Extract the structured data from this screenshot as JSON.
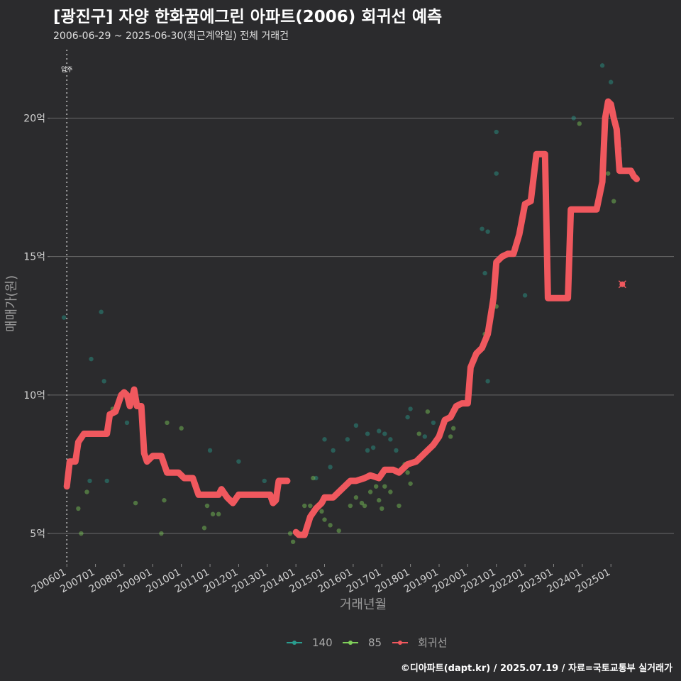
{
  "title": "[광진구] 자양 한화꿈에그린 아파트(2006) 회귀선 예측",
  "subtitle": "2006-06-29 ~ 2025-06-30(최근계약일) 전체 거래건",
  "caption": "©디아파트(dapt.kr) / 2025.07.19 / 자료=국토교통부 실거래가",
  "chart_data": {
    "type": "line",
    "xlabel": "거래년월",
    "ylabel": "매매가(원)",
    "x_unit": "year",
    "xlim": [
      2006.0,
      2025.8
    ],
    "ylim": [
      3.9,
      22.6
    ],
    "x_tick_labels": [
      "200601",
      "200701",
      "200801",
      "200901",
      "201001",
      "201101",
      "201201",
      "201301",
      "201401",
      "201501",
      "201601",
      "201701",
      "201801",
      "201901",
      "202001",
      "202101",
      "202201",
      "202301",
      "202401",
      "202501"
    ],
    "x_tick_values": [
      2006,
      2007,
      2008,
      2009,
      2010,
      2011,
      2012,
      2013,
      2014,
      2015,
      2016,
      2017,
      2018,
      2019,
      2020,
      2021,
      2022,
      2023,
      2024,
      2025
    ],
    "y_tick_labels": [
      "5억",
      "10억",
      "15억",
      "20억"
    ],
    "y_tick_values": [
      5,
      10,
      15,
      20
    ],
    "grid": true,
    "legend_placement": "bottom",
    "annotation": {
      "label": "입주",
      "x": 2006.0
    },
    "highlight_point": {
      "x": 2025.4,
      "y": 14.0
    },
    "series": [
      {
        "name": "140",
        "color": "#2a9d8f",
        "points": [
          [
            2006.8,
            6.9
          ],
          [
            2007.4,
            6.9
          ],
          [
            2007.2,
            13.0
          ],
          [
            2007.3,
            10.5
          ],
          [
            2006.85,
            11.3
          ],
          [
            2008.1,
            9.0
          ],
          [
            2011.0,
            8.0
          ],
          [
            2012.9,
            6.9
          ],
          [
            2012.0,
            7.6
          ],
          [
            2014.7,
            7.0
          ],
          [
            2015.2,
            7.4
          ],
          [
            2015.3,
            8.0
          ],
          [
            2015.0,
            8.4
          ],
          [
            2015.8,
            8.4
          ],
          [
            2016.1,
            8.9
          ],
          [
            2016.5,
            8.6
          ],
          [
            2016.5,
            8.0
          ],
          [
            2016.7,
            8.1
          ],
          [
            2016.9,
            8.7
          ],
          [
            2017.1,
            8.6
          ],
          [
            2017.3,
            8.4
          ],
          [
            2017.5,
            8.0
          ],
          [
            2017.9,
            9.2
          ],
          [
            2018.0,
            9.5
          ],
          [
            2018.5,
            8.5
          ],
          [
            2018.8,
            9.0
          ],
          [
            2020.5,
            16.0
          ],
          [
            2020.7,
            15.9
          ],
          [
            2020.6,
            14.4
          ],
          [
            2020.7,
            10.5
          ],
          [
            2021.0,
            18.0
          ],
          [
            2021.0,
            19.5
          ],
          [
            2022.0,
            13.6
          ],
          [
            2023.7,
            20.0
          ],
          [
            2024.7,
            21.9
          ],
          [
            2025.0,
            21.3
          ],
          [
            2025.3,
            18.9
          ],
          [
            2005.9,
            12.8
          ]
        ]
      },
      {
        "name": "85",
        "color": "#7fcf5a",
        "points": [
          [
            2006.4,
            5.9
          ],
          [
            2006.5,
            5.0
          ],
          [
            2006.7,
            6.5
          ],
          [
            2007.5,
            9.1
          ],
          [
            2007.6,
            9.5
          ],
          [
            2008.4,
            6.1
          ],
          [
            2009.3,
            5.0
          ],
          [
            2009.4,
            6.2
          ],
          [
            2009.5,
            9.0
          ],
          [
            2010.0,
            8.8
          ],
          [
            2010.8,
            5.2
          ],
          [
            2010.9,
            6.0
          ],
          [
            2011.1,
            5.7
          ],
          [
            2011.3,
            5.7
          ],
          [
            2013.8,
            5.0
          ],
          [
            2013.9,
            4.7
          ],
          [
            2014.3,
            6.0
          ],
          [
            2014.5,
            6.0
          ],
          [
            2014.6,
            7.0
          ],
          [
            2014.9,
            5.8
          ],
          [
            2015.0,
            5.5
          ],
          [
            2015.2,
            5.3
          ],
          [
            2015.5,
            5.1
          ],
          [
            2015.9,
            6.0
          ],
          [
            2016.1,
            6.3
          ],
          [
            2016.3,
            6.1
          ],
          [
            2016.4,
            6.0
          ],
          [
            2016.6,
            6.5
          ],
          [
            2016.8,
            6.7
          ],
          [
            2016.9,
            6.2
          ],
          [
            2017.0,
            5.9
          ],
          [
            2017.1,
            6.7
          ],
          [
            2017.3,
            6.5
          ],
          [
            2017.6,
            6.0
          ],
          [
            2017.8,
            7.5
          ],
          [
            2017.9,
            7.2
          ],
          [
            2018.0,
            6.8
          ],
          [
            2018.3,
            8.6
          ],
          [
            2018.6,
            9.4
          ],
          [
            2019.4,
            8.5
          ],
          [
            2019.5,
            8.8
          ],
          [
            2019.6,
            9.5
          ],
          [
            2020.6,
            12.2
          ],
          [
            2021.0,
            13.2
          ],
          [
            2023.5,
            13.5
          ],
          [
            2023.9,
            19.8
          ],
          [
            2024.9,
            18.0
          ],
          [
            2025.1,
            17.0
          ]
        ]
      },
      {
        "name": "회귀선",
        "color": "#f0585e",
        "segments": [
          [
            [
              2006.0,
              6.7
            ],
            [
              2006.1,
              7.6
            ],
            [
              2006.3,
              7.6
            ],
            [
              2006.4,
              8.3
            ],
            [
              2006.6,
              8.6
            ],
            [
              2007.0,
              8.6
            ],
            [
              2007.4,
              8.6
            ],
            [
              2007.5,
              9.3
            ],
            [
              2007.7,
              9.4
            ],
            [
              2007.9,
              10.0
            ],
            [
              2008.0,
              10.1
            ],
            [
              2008.1,
              10.0
            ],
            [
              2008.2,
              9.6
            ],
            [
              2008.35,
              10.2
            ],
            [
              2008.45,
              9.6
            ],
            [
              2008.6,
              9.6
            ],
            [
              2008.7,
              7.9
            ],
            [
              2008.8,
              7.6
            ],
            [
              2009.0,
              7.8
            ],
            [
              2009.3,
              7.8
            ],
            [
              2009.5,
              7.2
            ],
            [
              2009.9,
              7.2
            ],
            [
              2010.1,
              7.0
            ],
            [
              2010.4,
              7.0
            ],
            [
              2010.6,
              6.4
            ],
            [
              2011.3,
              6.4
            ],
            [
              2011.4,
              6.6
            ],
            [
              2011.6,
              6.3
            ],
            [
              2011.8,
              6.1
            ],
            [
              2012.0,
              6.4
            ],
            [
              2012.4,
              6.4
            ],
            [
              2013.1,
              6.4
            ],
            [
              2013.2,
              6.1
            ],
            [
              2013.3,
              6.2
            ],
            [
              2013.4,
              6.9
            ],
            [
              2013.7,
              6.9
            ]
          ],
          [
            [
              2014.0,
              5.05
            ],
            [
              2014.1,
              4.95
            ],
            [
              2014.3,
              4.95
            ],
            [
              2014.5,
              5.6
            ],
            [
              2014.7,
              5.9
            ],
            [
              2014.9,
              6.1
            ],
            [
              2015.0,
              6.3
            ],
            [
              2015.3,
              6.3
            ],
            [
              2015.6,
              6.6
            ],
            [
              2015.9,
              6.9
            ],
            [
              2016.1,
              6.9
            ],
            [
              2016.4,
              7.0
            ],
            [
              2016.6,
              7.1
            ],
            [
              2016.9,
              7.0
            ],
            [
              2017.1,
              7.3
            ],
            [
              2017.4,
              7.3
            ],
            [
              2017.6,
              7.2
            ],
            [
              2017.9,
              7.5
            ],
            [
              2018.2,
              7.6
            ],
            [
              2018.4,
              7.8
            ],
            [
              2018.6,
              8.0
            ],
            [
              2018.8,
              8.2
            ],
            [
              2019.0,
              8.5
            ],
            [
              2019.2,
              9.1
            ],
            [
              2019.4,
              9.2
            ],
            [
              2019.6,
              9.6
            ],
            [
              2019.8,
              9.7
            ],
            [
              2020.0,
              9.7
            ],
            [
              2020.1,
              11.0
            ],
            [
              2020.3,
              11.5
            ],
            [
              2020.5,
              11.7
            ],
            [
              2020.7,
              12.2
            ],
            [
              2020.9,
              13.5
            ],
            [
              2021.0,
              14.8
            ],
            [
              2021.2,
              15.0
            ],
            [
              2021.4,
              15.1
            ],
            [
              2021.6,
              15.1
            ],
            [
              2021.8,
              15.8
            ],
            [
              2022.0,
              16.9
            ],
            [
              2022.2,
              17.0
            ],
            [
              2022.4,
              18.7
            ],
            [
              2022.7,
              18.7
            ],
            [
              2022.8,
              13.5
            ],
            [
              2023.5,
              13.5
            ],
            [
              2023.6,
              16.7
            ],
            [
              2024.5,
              16.7
            ],
            [
              2024.7,
              17.7
            ],
            [
              2024.8,
              20.0
            ],
            [
              2024.9,
              20.6
            ],
            [
              2025.0,
              20.5
            ],
            [
              2025.1,
              20.0
            ],
            [
              2025.2,
              19.6
            ],
            [
              2025.3,
              18.1
            ],
            [
              2025.7,
              18.1
            ],
            [
              2025.8,
              17.9
            ],
            [
              2025.9,
              17.8
            ]
          ]
        ]
      }
    ]
  }
}
